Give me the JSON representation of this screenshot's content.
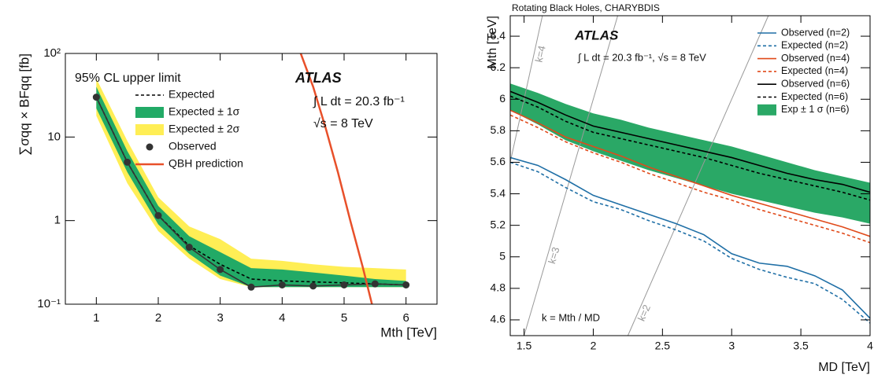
{
  "chart_data": [
    {
      "type": "line",
      "log": true,
      "annotations": [
        "95% CL upper limit",
        "ATLAS",
        "∫ L dt = 20.3 fb⁻¹",
        "√s = 8 TeV"
      ],
      "x_label": "Mth [TeV]",
      "y_label": "∑σqq × BFqq [fb]",
      "xlim": [
        0.5,
        6.5
      ],
      "xticks": [
        1,
        2,
        3,
        4,
        5,
        6
      ],
      "ylim": [
        0.1,
        100
      ],
      "yticks": [
        {
          "value": 0.1,
          "label": "10⁻¹"
        },
        1,
        10,
        {
          "value": 100,
          "label": "10²"
        }
      ],
      "x": [
        1,
        1.5,
        2,
        2.5,
        3,
        3.5,
        4,
        4.5,
        5,
        5.5,
        6
      ],
      "series": [
        {
          "name": "Expected",
          "color": "#000000",
          "dash": true,
          "values": [
            30,
            5,
            1.15,
            0.5,
            0.3,
            0.2,
            0.19,
            0.185,
            0.18,
            0.175,
            0.17
          ]
        },
        {
          "name": "Expected ± 1σ",
          "color": "#22aa66",
          "band": true,
          "low": [
            22,
            3.8,
            0.9,
            0.4,
            0.22,
            0.16,
            0.16,
            0.16,
            0.16,
            0.16,
            0.16
          ],
          "high": [
            40,
            6.8,
            1.5,
            0.65,
            0.42,
            0.27,
            0.26,
            0.24,
            0.22,
            0.2,
            0.19
          ]
        },
        {
          "name": "Expected ± 2σ",
          "color": "#ffee55",
          "band": true,
          "low": [
            18,
            2.8,
            0.75,
            0.35,
            0.2,
            0.16,
            0.16,
            0.16,
            0.16,
            0.16,
            0.16
          ],
          "high": [
            50,
            9,
            1.9,
            0.85,
            0.6,
            0.35,
            0.33,
            0.3,
            0.28,
            0.27,
            0.26
          ]
        },
        {
          "name": "Observed",
          "color": "#333333",
          "marker": "circle",
          "values": [
            30,
            5,
            1.15,
            0.48,
            0.26,
            0.16,
            0.17,
            0.165,
            0.17,
            0.175,
            0.17
          ]
        },
        {
          "name": "QBH prediction",
          "color": "#e8502a",
          "x": [
            4.3,
            4.5,
            4.7,
            4.9,
            5.1,
            5.3,
            5.45
          ],
          "values": [
            100,
            40,
            13,
            3.8,
            1,
            0.28,
            0.1
          ]
        }
      ]
    },
    {
      "type": "line",
      "log": false,
      "title": "Rotating Black Holes, CHARYBDIS",
      "annotations": [
        "ATLAS",
        "∫ L dt = 20.3 fb⁻¹, √s = 8 TeV",
        "k = Mth / MD"
      ],
      "x_label": "MD [TeV]",
      "y_label": "Mth [TeV]",
      "xlim": [
        1.4,
        4
      ],
      "xticks": [
        1.5,
        2,
        2.5,
        3,
        3.5,
        4
      ],
      "ylim": [
        4.5,
        6.53
      ],
      "yticks": [
        4.6,
        4.8,
        5,
        5.2,
        5.4,
        5.6,
        5.8,
        6,
        6.2,
        6.4
      ],
      "k_lines": [
        {
          "value": 4,
          "label": "k=4"
        },
        {
          "value": 3,
          "label": "k=3"
        },
        {
          "value": 2,
          "label": "k=2"
        }
      ],
      "x": [
        1.4,
        1.6,
        1.8,
        2.0,
        2.2,
        2.4,
        2.6,
        2.8,
        3.0,
        3.2,
        3.4,
        3.6,
        3.8,
        4.0
      ],
      "series": [
        {
          "name": "Observed (n=2)",
          "color": "#1f6fa6",
          "values": [
            5.63,
            5.58,
            5.49,
            5.39,
            5.33,
            5.27,
            5.21,
            5.14,
            5.02,
            4.96,
            4.94,
            4.88,
            4.79,
            4.61
          ]
        },
        {
          "name": "Expected (n=2)",
          "color": "#1f6fa6",
          "dash": true,
          "values": [
            5.6,
            5.54,
            5.44,
            5.35,
            5.3,
            5.23,
            5.17,
            5.1,
            4.99,
            4.92,
            4.87,
            4.83,
            4.73,
            4.58
          ]
        },
        {
          "name": "Observed (n=4)",
          "color": "#e04a1a",
          "values": [
            5.93,
            5.85,
            5.76,
            5.7,
            5.64,
            5.57,
            5.51,
            5.45,
            5.39,
            5.34,
            5.29,
            5.24,
            5.19,
            5.13
          ]
        },
        {
          "name": "Expected (n=4)",
          "color": "#e04a1a",
          "dash": true,
          "values": [
            5.9,
            5.82,
            5.73,
            5.66,
            5.6,
            5.53,
            5.47,
            5.41,
            5.36,
            5.3,
            5.25,
            5.2,
            5.15,
            5.09
          ]
        },
        {
          "name": "Observed (n=6)",
          "color": "#000000",
          "values": [
            6.05,
            5.98,
            5.9,
            5.83,
            5.79,
            5.75,
            5.71,
            5.67,
            5.63,
            5.58,
            5.53,
            5.49,
            5.46,
            5.41
          ]
        },
        {
          "name": "Expected (n=6)",
          "color": "#000000",
          "dash": true,
          "values": [
            6.02,
            5.95,
            5.86,
            5.79,
            5.75,
            5.71,
            5.67,
            5.63,
            5.58,
            5.53,
            5.49,
            5.45,
            5.41,
            5.36
          ]
        },
        {
          "name": "Exp ± 1 σ (n=6)",
          "color": "#2aa866",
          "band": true,
          "low": [
            5.93,
            5.84,
            5.74,
            5.67,
            5.61,
            5.55,
            5.5,
            5.45,
            5.4,
            5.36,
            5.32,
            5.28,
            5.25,
            5.21
          ],
          "high": [
            6.1,
            6.04,
            5.97,
            5.91,
            5.87,
            5.82,
            5.78,
            5.74,
            5.7,
            5.65,
            5.6,
            5.55,
            5.51,
            5.47
          ]
        }
      ]
    }
  ]
}
